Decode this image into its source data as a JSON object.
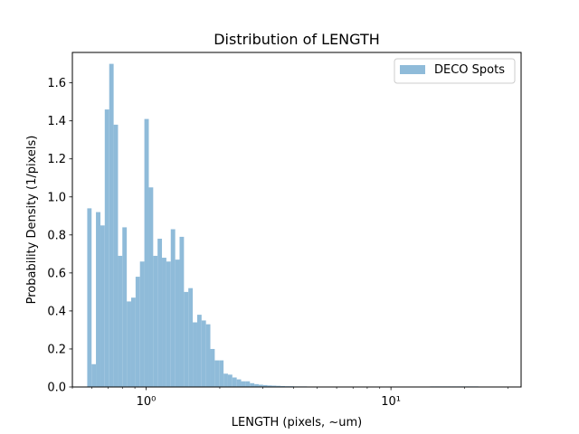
{
  "chart_data": {
    "type": "bar",
    "title": "Distribution of LENGTH",
    "xlabel": "LENGTH (pixels, ~um)",
    "ylabel": "Probability Density (1/pixels)",
    "xscale": "log",
    "xlim": [
      0.5,
      34
    ],
    "ylim": [
      0,
      1.76
    ],
    "yticks": [
      0.0,
      0.2,
      0.4,
      0.6,
      0.8,
      1.0,
      1.2,
      1.4,
      1.6
    ],
    "ytick_labels": [
      "0.0",
      "0.2",
      "0.4",
      "0.6",
      "0.8",
      "1.0",
      "1.2",
      "1.4",
      "1.6"
    ],
    "xticks": [
      1,
      10
    ],
    "xtick_labels": [
      "10⁰",
      "10¹"
    ],
    "legend": {
      "position": "top-right",
      "entries": [
        {
          "label": "DECO Spots",
          "color": "#8fbbd9"
        }
      ]
    },
    "grid": false,
    "bar_color": "#8fbbd9",
    "series": [
      {
        "name": "DECO Spots",
        "bin_edges": [
          0.575,
          0.599,
          0.624,
          0.651,
          0.678,
          0.707,
          0.737,
          0.768,
          0.8,
          0.834,
          0.869,
          0.906,
          0.944,
          0.984,
          1.026,
          1.069,
          1.114,
          1.161,
          1.21,
          1.261,
          1.315,
          1.37,
          1.428,
          1.488,
          1.551,
          1.617,
          1.685,
          1.756,
          1.83,
          1.907,
          1.988,
          2.072,
          2.159,
          2.25,
          2.345,
          2.444,
          2.547,
          2.655,
          2.767,
          2.883,
          3.005,
          3.132,
          3.264,
          3.402,
          3.545,
          3.695,
          3.85,
          4.013,
          4.182,
          4.358,
          4.542,
          4.734,
          4.933,
          5.142,
          5.359,
          5.585,
          5.82,
          6.066,
          6.322,
          6.588,
          6.866,
          7.156,
          7.458,
          7.772,
          8.1,
          8.442,
          8.798,
          9.169,
          9.556,
          9.959,
          10.379,
          10.817,
          11.273,
          11.749,
          12.244,
          12.761,
          13.299,
          13.86,
          14.445,
          15.054,
          15.689,
          16.351,
          17.041,
          17.76,
          18.509,
          19.29,
          20.103,
          20.951,
          21.835,
          22.756,
          23.716,
          24.717,
          25.759,
          26.846,
          27.978,
          29.158,
          30.388
        ],
        "values": [
          0.94,
          0.12,
          0.92,
          0.85,
          1.46,
          1.7,
          1.38,
          0.69,
          0.84,
          0.45,
          0.47,
          0.58,
          0.66,
          1.41,
          1.05,
          0.69,
          0.78,
          0.68,
          0.66,
          0.83,
          0.67,
          0.79,
          0.5,
          0.52,
          0.34,
          0.38,
          0.35,
          0.33,
          0.2,
          0.14,
          0.14,
          0.07,
          0.065,
          0.05,
          0.04,
          0.03,
          0.03,
          0.02,
          0.015,
          0.012,
          0.01,
          0.008,
          0.007,
          0.006,
          0.005,
          0.004,
          0.004,
          0.003,
          0.003,
          0.003,
          0.002,
          0.002,
          0.002,
          0.002,
          0.002,
          0.002,
          0.002,
          0.001,
          0.001,
          0.001,
          0.001,
          0.001,
          0.001,
          0.001,
          0.001,
          0.001,
          0.001,
          0.001,
          0.001,
          0.001,
          0.002,
          0.002,
          0.002,
          0.002,
          0.002,
          0.002,
          0.002,
          0.002,
          0.003,
          0.003,
          0.003,
          0.003,
          0.003,
          0.003,
          0.003,
          0.003,
          0.003,
          0.003,
          0.003,
          0.002,
          0.002,
          0.002,
          0.002,
          0.001,
          0.001,
          0.001
        ]
      }
    ]
  }
}
